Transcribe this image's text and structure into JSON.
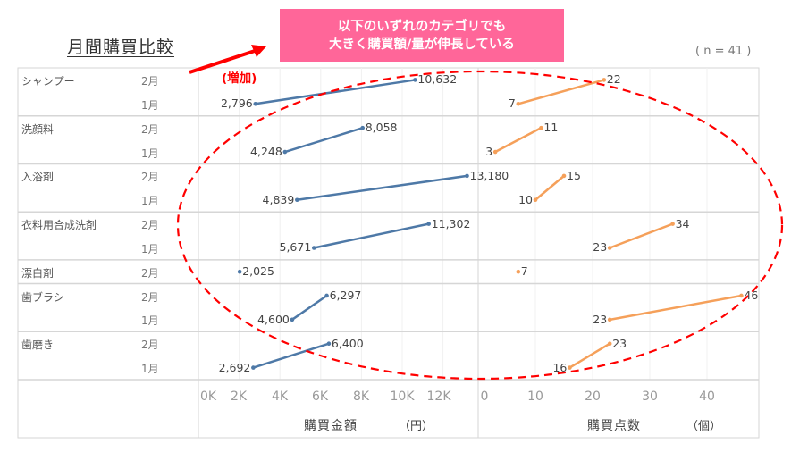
{
  "title": "月間購買比較",
  "callout": {
    "line1": "以下のいずれのカテゴリでも",
    "line2": "大きく購買額/量が伸長している",
    "color": "#ff6699"
  },
  "sample_size": "( n = 41 )",
  "annotation": "(増加)",
  "colors": {
    "amount": "#4e79a7",
    "count": "#f5a05a",
    "highlight": "#ff0000"
  },
  "chart_data": {
    "type": "line",
    "title": "月間購買比較",
    "categories": [
      "シャンプー",
      "洗顔料",
      "入浴剤",
      "衣料用合成洗剤",
      "漂白剤",
      "歯ブラシ",
      "歯磨き"
    ],
    "months": [
      "2月",
      "1月"
    ],
    "rows": [
      {
        "category": "シャンプー",
        "months": [
          "2月",
          "1月"
        ],
        "amount": {
          "jan": 2796,
          "feb": 10632,
          "jan_label": "2,796",
          "feb_label": "10,632"
        },
        "count": {
          "jan": 7,
          "feb": 22,
          "jan_label": "7",
          "feb_label": "22"
        }
      },
      {
        "category": "洗顔料",
        "months": [
          "2月",
          "1月"
        ],
        "amount": {
          "jan": 4248,
          "feb": 8058,
          "jan_label": "4,248",
          "feb_label": "8,058"
        },
        "count": {
          "jan": 3,
          "feb": 11,
          "jan_label": "3",
          "feb_label": "11"
        }
      },
      {
        "category": "入浴剤",
        "months": [
          "2月",
          "1月"
        ],
        "amount": {
          "jan": 4839,
          "feb": 13180,
          "jan_label": "4,839",
          "feb_label": "13,180"
        },
        "count": {
          "jan": 10,
          "feb": 15,
          "jan_label": "10",
          "feb_label": "15"
        }
      },
      {
        "category": "衣料用合成洗剤",
        "months": [
          "2月",
          "1月"
        ],
        "amount": {
          "jan": 5671,
          "feb": 11302,
          "jan_label": "5,671",
          "feb_label": "11,302"
        },
        "count": {
          "jan": 23,
          "feb": 34,
          "jan_label": "23",
          "feb_label": "34"
        }
      },
      {
        "category": "漂白剤",
        "months": [
          "2月"
        ],
        "amount": {
          "feb": 2025,
          "feb_label": "2,025"
        },
        "count": {
          "feb": 7,
          "feb_label": "7"
        }
      },
      {
        "category": "歯ブラシ",
        "months": [
          "2月",
          "1月"
        ],
        "amount": {
          "jan": 4600,
          "feb": 6297,
          "jan_label": "4,600",
          "feb_label": "6,297"
        },
        "count": {
          "jan": 23,
          "feb": 46,
          "jan_label": "23",
          "feb_label": "46"
        }
      },
      {
        "category": "歯磨き",
        "months": [
          "2月",
          "1月"
        ],
        "amount": {
          "jan": 2692,
          "feb": 6400,
          "jan_label": "2,692",
          "feb_label": "6,400"
        },
        "count": {
          "jan": 16,
          "feb": 23,
          "jan_label": "16",
          "feb_label": "23"
        }
      }
    ],
    "amount_axis": {
      "label": "購買金額",
      "unit": "（円）",
      "ticks": [
        "0K",
        "2K",
        "4K",
        "6K",
        "8K",
        "10K",
        "12K"
      ],
      "tick_values": [
        0,
        2000,
        4000,
        6000,
        8000,
        10000,
        12000
      ],
      "range": [
        0,
        13500
      ]
    },
    "count_axis": {
      "label": "購買点数",
      "unit": "（個）",
      "ticks": [
        "0",
        "10",
        "20",
        "30",
        "40"
      ],
      "tick_values": [
        0,
        10,
        20,
        30,
        40
      ],
      "range": [
        0,
        49
      ]
    },
    "grid": true
  }
}
